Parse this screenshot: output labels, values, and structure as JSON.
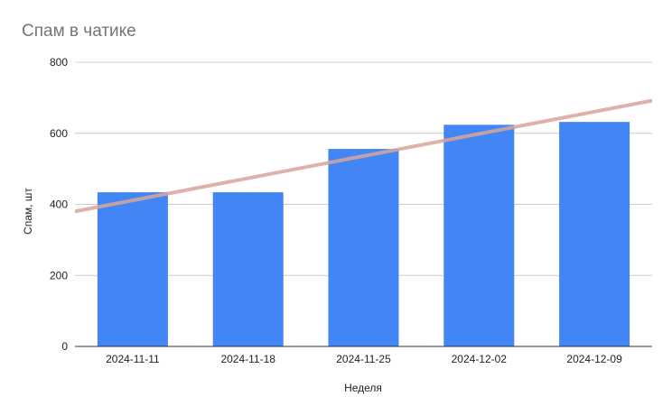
{
  "chart_data": {
    "type": "bar",
    "title": "Спам в чатике",
    "xlabel": "Неделя",
    "ylabel": "Спам, шт",
    "categories": [
      "2024-11-11",
      "2024-11-18",
      "2024-11-25",
      "2024-12-02",
      "2024-12-09"
    ],
    "series": [
      {
        "values": [
          434,
          434,
          556,
          624,
          632
        ]
      }
    ],
    "trendline": {
      "type": "linear",
      "start_value": 380,
      "end_value": 692
    },
    "ylim": [
      0,
      800
    ],
    "yticks": [
      "0",
      "200",
      "400",
      "600",
      "800"
    ],
    "grid": true,
    "legend": "none",
    "colors": {
      "bar": "#4285f4",
      "trendline": "#d9a49a",
      "grid": "#cccccc",
      "axis": "#333333"
    }
  }
}
